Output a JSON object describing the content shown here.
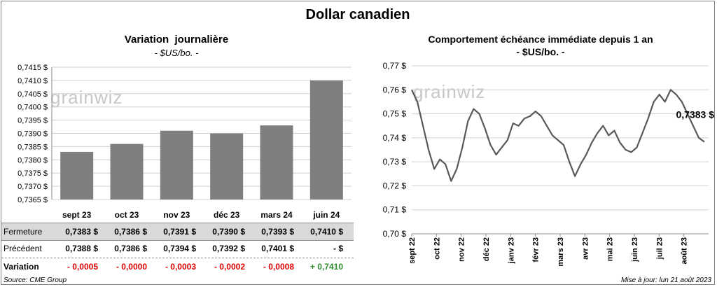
{
  "title": "Dollar canadien",
  "watermark": "grainwiz",
  "left_chart": {
    "title": "Variation  journalière",
    "subtitle": "- $US/bo. -"
  },
  "right_chart": {
    "title": "Comportement échéance immédiate depuis 1 an",
    "subtitle": "- $US/bo. -",
    "last_value_label": "0,7383 $"
  },
  "table": {
    "rows": [
      {
        "label": "Fermeture",
        "cells": [
          "0,7383  $",
          "0,7386  $",
          "0,7391  $",
          "0,7390  $",
          "0,7393  $",
          "0,7410  $"
        ]
      },
      {
        "label": "Précédent",
        "cells": [
          "0,7388  $",
          "0,7386  $",
          "0,7394  $",
          "0,7392  $",
          "0,7401  $",
          "-       $"
        ]
      },
      {
        "label": "Variation",
        "cells": [
          "- 0,0005",
          "- 0,0000",
          "- 0,0003",
          "- 0,0002",
          "- 0,0008",
          "+ 0,7410"
        ]
      }
    ]
  },
  "source": "Source: CME Group",
  "update": "Mise à jour: lun 21 août 2023",
  "colors": {
    "bar": "#7f7f7f",
    "line": "#595959",
    "negative": "#e00000",
    "positive": "#2e8b2e"
  },
  "chart_data": [
    {
      "type": "bar",
      "categories": [
        "sept 23",
        "oct 23",
        "nov 23",
        "déc 23",
        "mars 24",
        "juin 24"
      ],
      "values": [
        0.7383,
        0.7386,
        0.7391,
        0.739,
        0.7393,
        0.741
      ],
      "ylim": [
        0.7365,
        0.7415
      ],
      "yticks": [
        "0,7365 $",
        "0,7370 $",
        "0,7375 $",
        "0,7380 $",
        "0,7385 $",
        "0,7390 $",
        "0,7395 $",
        "0,7400 $",
        "0,7405 $",
        "0,7410 $",
        "0,7415 $"
      ],
      "grid": true
    },
    {
      "type": "line",
      "xticks": [
        "sept 22",
        "oct 22",
        "nov 22",
        "déc 22",
        "janv 23",
        "févr 23",
        "mars 23",
        "avr 23",
        "mai 23",
        "juin 23",
        "juil 23",
        "août 23"
      ],
      "ylim": [
        0.7,
        0.77
      ],
      "yticks": [
        "0,70 $",
        "0,71 $",
        "0,72 $",
        "0,73 $",
        "0,74 $",
        "0,75 $",
        "0,76 $",
        "0,77 $"
      ],
      "grid": true,
      "x": [
        "2022-08-22",
        "2022-08-29",
        "2022-09-05",
        "2022-09-12",
        "2022-09-19",
        "2022-09-26",
        "2022-10-03",
        "2022-10-10",
        "2022-10-17",
        "2022-10-24",
        "2022-10-31",
        "2022-11-07",
        "2022-11-14",
        "2022-11-21",
        "2022-11-28",
        "2022-12-05",
        "2022-12-12",
        "2022-12-19",
        "2022-12-26",
        "2023-01-02",
        "2023-01-09",
        "2023-01-16",
        "2023-01-23",
        "2023-01-30",
        "2023-02-06",
        "2023-02-13",
        "2023-02-20",
        "2023-02-27",
        "2023-03-06",
        "2023-03-13",
        "2023-03-20",
        "2023-03-27",
        "2023-04-03",
        "2023-04-10",
        "2023-04-17",
        "2023-04-24",
        "2023-05-01",
        "2023-05-08",
        "2023-05-15",
        "2023-05-22",
        "2023-05-29",
        "2023-06-05",
        "2023-06-12",
        "2023-06-19",
        "2023-06-26",
        "2023-07-03",
        "2023-07-10",
        "2023-07-17",
        "2023-07-24",
        "2023-07-31",
        "2023-08-07",
        "2023-08-14",
        "2023-08-21"
      ],
      "values": [
        0.76,
        0.755,
        0.745,
        0.735,
        0.727,
        0.731,
        0.729,
        0.722,
        0.727,
        0.736,
        0.747,
        0.752,
        0.75,
        0.744,
        0.737,
        0.733,
        0.736,
        0.739,
        0.746,
        0.745,
        0.748,
        0.749,
        0.751,
        0.749,
        0.745,
        0.741,
        0.739,
        0.737,
        0.73,
        0.724,
        0.729,
        0.733,
        0.738,
        0.742,
        0.745,
        0.741,
        0.743,
        0.738,
        0.735,
        0.734,
        0.736,
        0.742,
        0.748,
        0.755,
        0.758,
        0.755,
        0.76,
        0.758,
        0.755,
        0.75,
        0.745,
        0.74,
        0.7383
      ]
    }
  ]
}
